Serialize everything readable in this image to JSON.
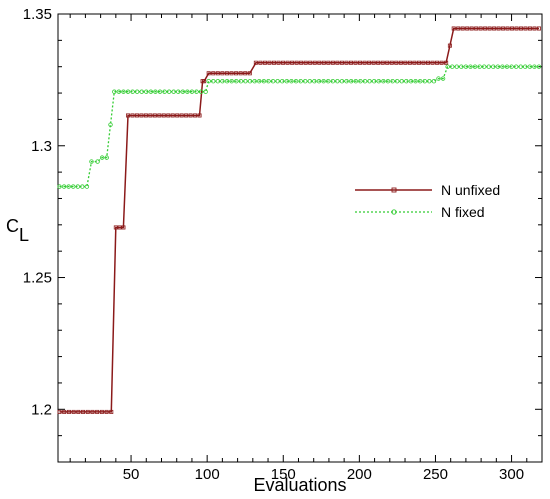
{
  "chart_data": {
    "type": "line",
    "xlabel": "Evaluations",
    "ylabel_main": "C",
    "ylabel_sub": "L",
    "xlim": [
      2,
      320
    ],
    "ylim": [
      1.18,
      1.35
    ],
    "xticks": [
      50,
      100,
      150,
      200,
      250,
      300
    ],
    "yticks": [
      1.2,
      1.25,
      1.3,
      1.35
    ],
    "xtick_labels": [
      "50",
      "100",
      "150",
      "200",
      "250",
      "300"
    ],
    "ytick_labels": [
      "1.2",
      "1.25",
      "1.3",
      "1.35"
    ],
    "grid": false,
    "legend_position": "right",
    "series": [
      {
        "name": "N unfixed",
        "color": "#8b1a1a",
        "style": "solid",
        "marker": "square",
        "steps": [
          [
            3,
            1.199
          ],
          [
            37,
            1.199
          ],
          [
            40,
            1.269
          ],
          [
            45,
            1.269
          ],
          [
            48,
            1.3115
          ],
          [
            95,
            1.3115
          ],
          [
            97,
            1.3245
          ],
          [
            98,
            1.3245
          ],
          [
            101,
            1.3275
          ],
          [
            128,
            1.3275
          ],
          [
            132,
            1.3315
          ],
          [
            257,
            1.3315
          ],
          [
            262,
            1.3445
          ],
          [
            318,
            1.3445
          ]
        ]
      },
      {
        "name": "N fixed",
        "color": "#33cc33",
        "style": "dotted",
        "marker": "circle",
        "steps": [
          [
            3,
            1.2845
          ],
          [
            21,
            1.2845
          ],
          [
            24,
            1.294
          ],
          [
            28,
            1.294
          ],
          [
            31,
            1.2955
          ],
          [
            34,
            1.2955
          ],
          [
            39,
            1.3205
          ],
          [
            99,
            1.3205
          ],
          [
            101,
            1.3245
          ],
          [
            249,
            1.3245
          ],
          [
            252,
            1.3255
          ],
          [
            255,
            1.3255
          ],
          [
            258,
            1.33
          ],
          [
            318,
            1.33
          ]
        ]
      }
    ]
  }
}
